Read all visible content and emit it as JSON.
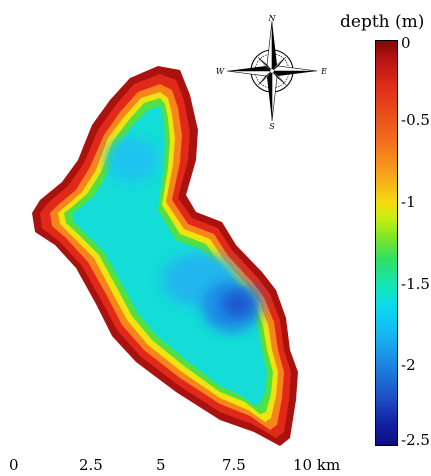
{
  "colorbar": {
    "title": "depth (m)",
    "ticks": [
      "0",
      "-0.5",
      "-1",
      "-1.5",
      "-2",
      "-2.5"
    ],
    "range": [
      -2.5,
      0
    ],
    "colors": [
      "#7a0a05",
      "#e1301a",
      "#f7a21b",
      "#f3dc10",
      "#7ae429",
      "#10e6b9",
      "#14b5f1",
      "#1d52c7",
      "#0b0f7e"
    ]
  },
  "scale_bar": {
    "labels": [
      "0",
      "2.5",
      "5",
      "7.5",
      "10 km"
    ]
  },
  "compass": {
    "north": "N",
    "south": "S",
    "east": "E",
    "west": "W"
  }
}
